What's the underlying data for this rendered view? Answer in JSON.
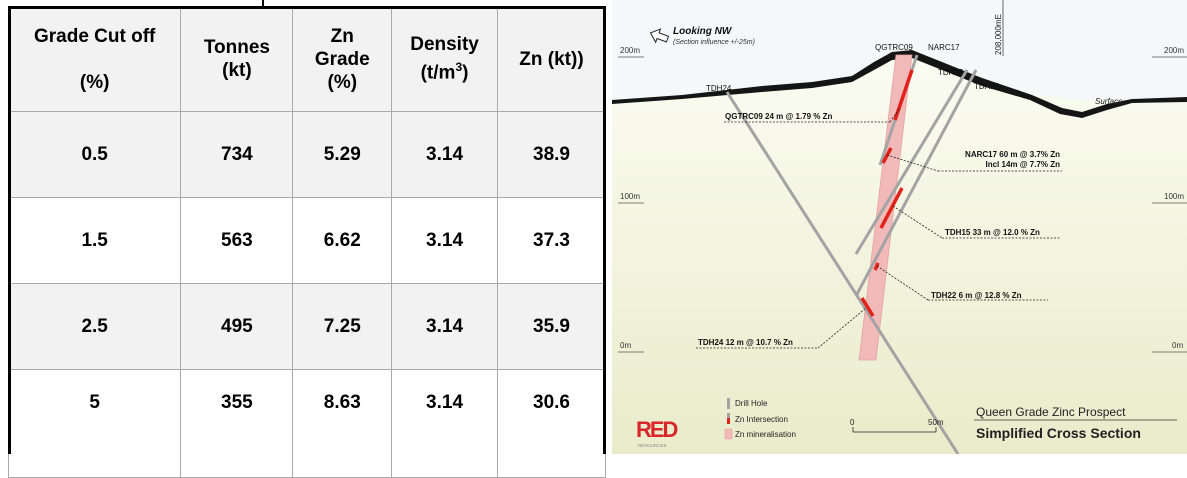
{
  "table": {
    "headers": {
      "cutoff_l1": "Grade Cut off",
      "cutoff_l2": "(%)",
      "tonnes_l1": "Tonnes",
      "tonnes_l2": "(kt)",
      "grade_l1": "Zn",
      "grade_l2": "Grade",
      "grade_l3": "(%)",
      "density_l1": "Density",
      "density_l2": "(t/m",
      "density_sup": "3",
      "density_l3": ")",
      "znkt": "Zn (kt))"
    },
    "rows": [
      {
        "cutoff": "0.5",
        "tonnes": "734",
        "grade": "5.29",
        "density": "3.14",
        "znkt": "38.9"
      },
      {
        "cutoff": "1.5",
        "tonnes": "563",
        "grade": "6.62",
        "density": "3.14",
        "znkt": "37.3"
      },
      {
        "cutoff": "2.5",
        "tonnes": "495",
        "grade": "7.25",
        "density": "3.14",
        "znkt": "35.9"
      },
      {
        "cutoff": "5",
        "tonnes": "355",
        "grade": "8.63",
        "density": "3.14",
        "znkt": "30.6"
      }
    ]
  },
  "section": {
    "looking": "Looking NW",
    "influence": "(Section influence +/-25m)",
    "easting": "208,000mE",
    "rl_200": "200m",
    "rl_100": "100m",
    "rl_0": "0m",
    "surface": "Surface",
    "holes": {
      "qgtrc09": "QGTRC09",
      "narc17": "NARC17",
      "tdh15": "TDH15",
      "tdh22": "TDH22",
      "tdh24": "TDH24"
    },
    "intercepts": {
      "qgtrc09": "QGTRC09 24 m @ 1.79 % Zn",
      "narc17_a": "NARC17 60 m @ 3.7% Zn",
      "narc17_b": "Incl 14m @ 7.7% Zn",
      "tdh15": "TDH15 33 m @ 12.0 % Zn",
      "tdh22": "TDH22 6 m @ 12.8 % Zn",
      "tdh24": "TDH24 12 m @ 10.7 % Zn"
    },
    "legend": {
      "drill_hole": "Drill Hole",
      "zn_intersection": "Zn Intersection",
      "zn_mineralisation": "Zn mineralisation"
    },
    "scale": {
      "start": "0",
      "end": "50m"
    },
    "title_l1": "Queen Grade Zinc Prospect",
    "title_l2": "Simplified Cross Section",
    "logo_text": "RED",
    "logo_sub": "RESOURCES",
    "colors": {
      "sky": "#f4f8f8",
      "ground": "#eef0d6",
      "drill": "#a3a3a3",
      "intersection": "#e0221b",
      "mineral": "#f2b9b9",
      "surface": "#151515"
    }
  }
}
